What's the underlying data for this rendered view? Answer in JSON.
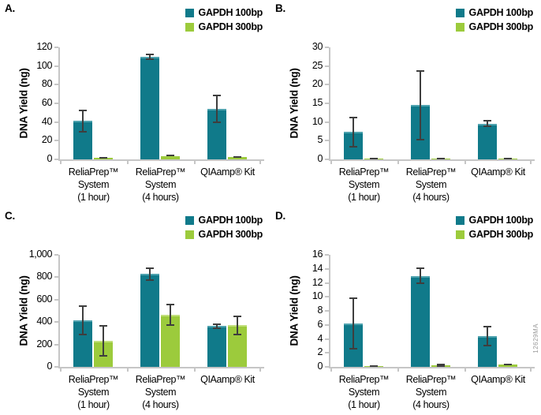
{
  "figure_id": "12629MA",
  "colors": {
    "axis": "#C6C6C6",
    "error_bar": "#3E3E3E",
    "text": "#000000",
    "figure_id": "#9A9A9A",
    "series_teal": "#107A8A",
    "series_green": "#9CCB3C"
  },
  "legend": {
    "items": [
      {
        "label": "GAPDH 100bp",
        "color": "#107A8A",
        "highlight": "#4FA3AF"
      },
      {
        "label": "GAPDH 300bp",
        "color": "#9CCB3C",
        "highlight": "#C2DF7C"
      }
    ]
  },
  "chart_data": [
    {
      "panel": "A.",
      "type": "bar",
      "ylabel": "DNA Yield (ng)",
      "ylim": [
        0,
        120
      ],
      "yticks": [
        0,
        20,
        40,
        60,
        80,
        100,
        120
      ],
      "ytick_labels": [
        "0",
        "20",
        "40",
        "60",
        "80",
        "100",
        "120"
      ],
      "categories": [
        [
          "ReliaPrep™",
          "System",
          "(1 hour)"
        ],
        [
          "ReliaPrep™",
          "System",
          "(4 hours)"
        ],
        [
          "QIAamp® Kit"
        ]
      ],
      "series": [
        {
          "name": "GAPDH 100bp",
          "values": [
            41,
            110,
            54
          ],
          "errors": [
            12,
            3.5,
            15
          ]
        },
        {
          "name": "GAPDH 300bp",
          "values": [
            1.3,
            3.5,
            2.5
          ],
          "errors": [
            0.7,
            0.5,
            0.7
          ]
        }
      ],
      "legend_position": "top-right",
      "grid": false
    },
    {
      "panel": "B.",
      "type": "bar",
      "ylabel": "DNA Yield (ng)",
      "ylim": [
        0,
        30
      ],
      "yticks": [
        0,
        5,
        10,
        15,
        20,
        25,
        30
      ],
      "ytick_labels": [
        "0",
        "5",
        "10",
        "15",
        "20",
        "25",
        "30"
      ],
      "categories": [
        [
          "ReliaPrep™",
          "System",
          "(1 hour)"
        ],
        [
          "ReliaPrep™",
          "System",
          "(4 hours)"
        ],
        [
          "QIAamp® Kit"
        ]
      ],
      "series": [
        {
          "name": "GAPDH 100bp",
          "values": [
            7.3,
            14.5,
            9.6
          ],
          "errors": [
            4.2,
            9.4,
            1.0
          ]
        },
        {
          "name": "GAPDH 300bp",
          "values": [
            0.1,
            0.2,
            0.2
          ],
          "errors": [
            0.05,
            0.1,
            0.1
          ]
        }
      ],
      "legend_position": "top-right",
      "grid": false
    },
    {
      "panel": "C.",
      "type": "bar",
      "ylabel": "DNA Yield (ng)",
      "ylim": [
        0,
        1000
      ],
      "yticks": [
        0,
        200,
        400,
        600,
        800,
        1000
      ],
      "ytick_labels": [
        "0",
        "200",
        "400",
        "600",
        "800",
        "1,000"
      ],
      "categories": [
        [
          "ReliaPrep™",
          "System",
          "(1 hour)"
        ],
        [
          "ReliaPrep™",
          "System",
          "(4 hours)"
        ],
        [
          "QIAamp® Kit"
        ]
      ],
      "series": [
        {
          "name": "GAPDH 100bp",
          "values": [
            415,
            830,
            365
          ],
          "errors": [
            135,
            60,
            25
          ]
        },
        {
          "name": "GAPDH 300bp",
          "values": [
            230,
            465,
            370
          ],
          "errors": [
            140,
            100,
            90
          ]
        }
      ],
      "legend_position": "top-right",
      "grid": false
    },
    {
      "panel": "D.",
      "type": "bar",
      "ylabel": "DNA Yield (ng)",
      "ylim": [
        0,
        16
      ],
      "yticks": [
        0,
        2,
        4,
        6,
        8,
        10,
        12,
        14,
        16
      ],
      "ytick_labels": [
        "0",
        "2",
        "4",
        "6",
        "8",
        "10",
        "12",
        "14",
        "16"
      ],
      "categories": [
        [
          "ReliaPrep™",
          "System",
          "(1 hour)"
        ],
        [
          "ReliaPrep™",
          "System",
          "(4 hours)"
        ],
        [
          "QIAamp® Kit"
        ]
      ],
      "series": [
        {
          "name": "GAPDH 100bp",
          "values": [
            6.2,
            13.0,
            4.4
          ],
          "errors": [
            3.7,
            1.2,
            1.5
          ]
        },
        {
          "name": "GAPDH 300bp",
          "values": [
            0.1,
            0.25,
            0.3
          ],
          "errors": [
            0.05,
            0.2,
            0.1
          ]
        }
      ],
      "legend_position": "top-right",
      "grid": false
    }
  ]
}
